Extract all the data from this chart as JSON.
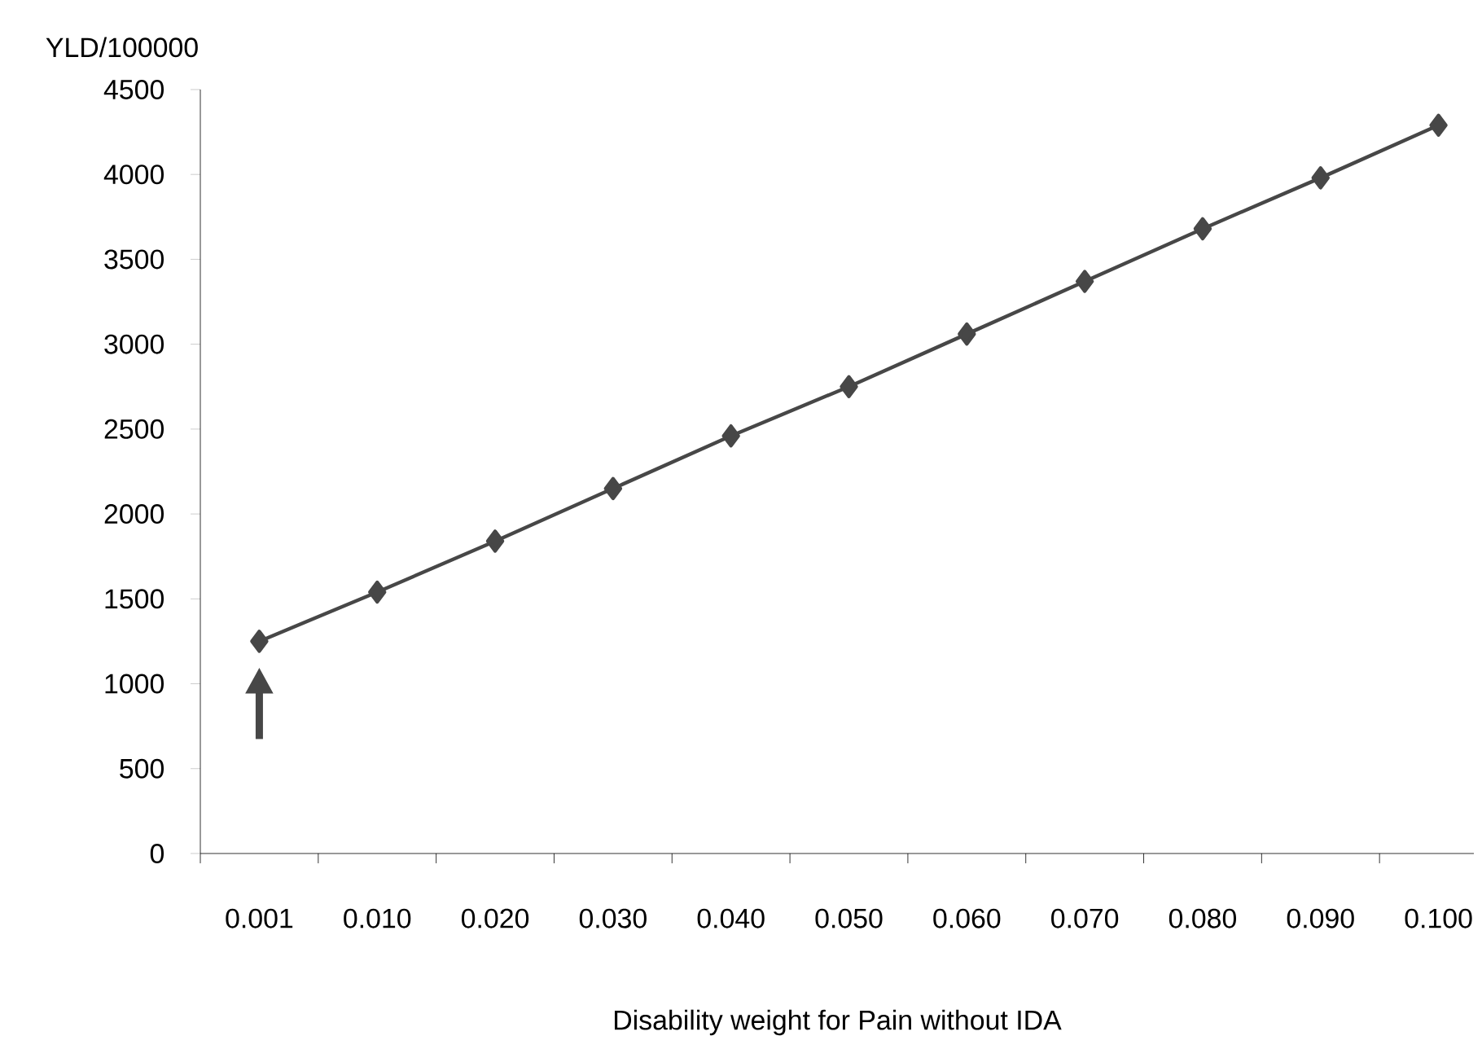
{
  "chart_data": {
    "type": "line",
    "xlabel": "Disability weight for Pain without IDA",
    "ylabel": "YLD/100000",
    "categories": [
      "0.001",
      "0.010",
      "0.020",
      "0.030",
      "0.040",
      "0.050",
      "0.060",
      "0.070",
      "0.080",
      "0.090",
      "0.100"
    ],
    "series": [
      {
        "color": "#474747",
        "values": [
          1250,
          1540,
          1840,
          2150,
          2460,
          2750,
          3060,
          3370,
          3680,
          3980,
          4290
        ]
      }
    ],
    "ylim": [
      0,
      4500
    ],
    "yticks": [
      0,
      500,
      1000,
      1500,
      2000,
      2500,
      3000,
      3500,
      4000,
      4500
    ],
    "marker": "diamond"
  }
}
